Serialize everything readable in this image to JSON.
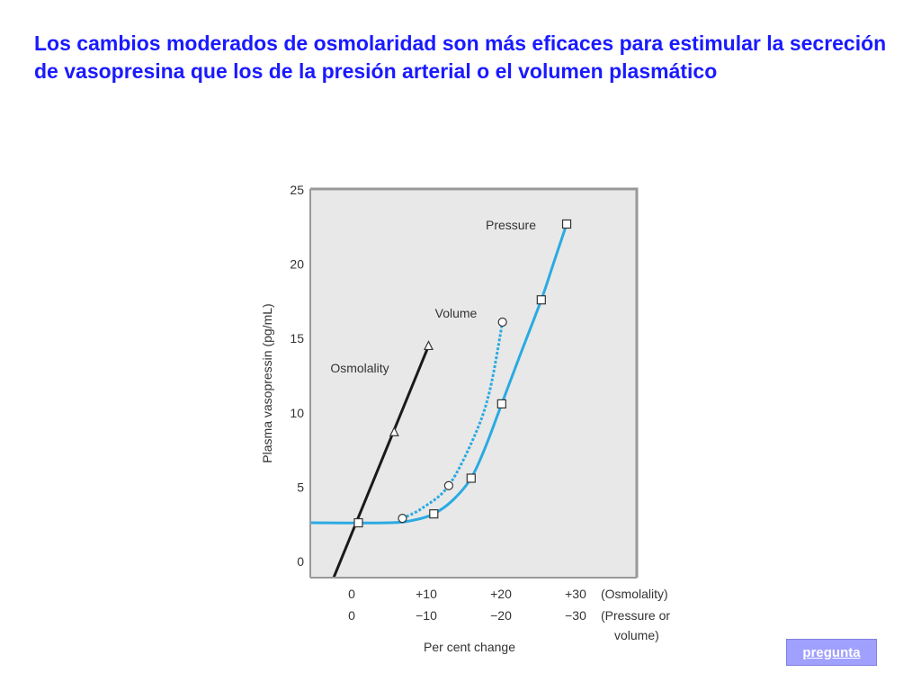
{
  "slide": {
    "title": "Los cambios moderados de osmolaridad son más eficaces para estimular la secreción de vasopresina que los de la presión arterial o el volumen plasmático"
  },
  "link_button": {
    "label": "pregunta"
  },
  "colors": {
    "title": "#1a1aff",
    "plot_background": "#e8e8e8",
    "frame": "#999999",
    "osmolality_line": "#1a1a1a",
    "pressure_line": "#2aaae2",
    "volume_line": "#2aaae2",
    "button_bg": "#a0a0ff"
  },
  "chart_data": {
    "type": "line",
    "ylabel": "Plasma vasopressin (pg/mL)",
    "xlabel": "Per cent change",
    "ylim": [
      0,
      25
    ],
    "xlim": [
      -5.5,
      39
    ],
    "yticks": [
      0,
      5,
      10,
      15,
      20,
      25
    ],
    "xtick_rows": [
      {
        "values": [
          0,
          10,
          20,
          30
        ],
        "labels": [
          "0",
          "+10",
          "+20",
          "+30"
        ],
        "suffix": "(Osmolality)"
      },
      {
        "values": [
          0,
          10,
          20,
          30
        ],
        "labels": [
          "0",
          "−10",
          "−20",
          "−30"
        ],
        "suffix": "(Pressure or",
        "suffix2": "volume)"
      }
    ],
    "series": [
      {
        "name": "Osmolality",
        "marker": "triangle",
        "style": "solid",
        "line": [
          [
            -2.5,
            -1.2
          ],
          [
            10.3,
            14.5
          ]
        ],
        "points": [
          [
            5.7,
            8.7
          ],
          [
            10.3,
            14.5
          ]
        ]
      },
      {
        "name": "Volume",
        "marker": "circle",
        "style": "dotted",
        "line": [
          [
            6.8,
            2.9
          ],
          [
            9.5,
            3.6
          ],
          [
            13,
            5.1
          ],
          [
            16.5,
            8.5
          ],
          [
            18.5,
            11.5
          ],
          [
            20.2,
            16.1
          ]
        ],
        "points": [
          [
            6.8,
            2.9
          ],
          [
            13,
            5.1
          ],
          [
            20.2,
            16.1
          ]
        ]
      },
      {
        "name": "Pressure",
        "marker": "square",
        "style": "solid",
        "line": [
          [
            -5.5,
            2.6
          ],
          [
            5,
            2.6
          ],
          [
            8.5,
            2.8
          ],
          [
            11,
            3.2
          ],
          [
            13.5,
            4.1
          ],
          [
            16,
            5.6
          ],
          [
            18,
            7.8
          ],
          [
            20.1,
            10.6
          ],
          [
            22.5,
            13.8
          ],
          [
            25.4,
            17.6
          ],
          [
            27,
            20
          ],
          [
            28.8,
            22.7
          ]
        ],
        "points": [
          [
            0.9,
            2.6
          ],
          [
            11,
            3.2
          ],
          [
            16,
            5.6
          ],
          [
            20.1,
            10.6
          ],
          [
            25.4,
            17.6
          ],
          [
            28.8,
            22.7
          ]
        ]
      }
    ],
    "annotations": [
      "Osmolality",
      "Volume",
      "Pressure"
    ]
  }
}
